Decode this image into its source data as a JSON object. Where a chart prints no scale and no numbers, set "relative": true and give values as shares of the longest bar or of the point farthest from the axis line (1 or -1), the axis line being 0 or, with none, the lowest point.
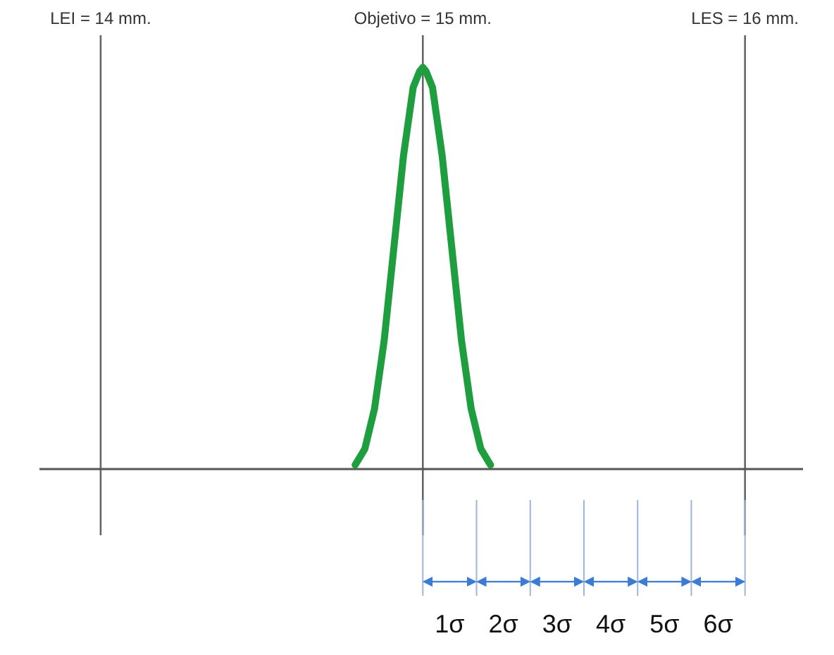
{
  "chart_data": {
    "type": "line",
    "relative": true,
    "xlim": [
      13.81,
      16.18
    ],
    "xticks": [
      {
        "value": 14,
        "label": "LEI = 14 mm."
      },
      {
        "value": 15,
        "label": "Objetivo = 15 mm."
      },
      {
        "value": 16,
        "label": "LES = 16 mm."
      }
    ],
    "grid": "x",
    "marker": "none",
    "series": [
      {
        "color": "#1e9e3e",
        "x": [
          14.79,
          14.82,
          14.85,
          14.88,
          14.91,
          14.94,
          14.97,
          14.99,
          15,
          15.01,
          15.03,
          15.06,
          15.09,
          15.12,
          15.15,
          15.18,
          15.21
        ],
        "values": [
          0.01,
          0.05,
          0.15,
          0.32,
          0.55,
          0.78,
          0.95,
          0.99,
          1,
          0.99,
          0.95,
          0.78,
          0.55,
          0.32,
          0.15,
          0.05,
          0.01
        ]
      }
    ],
    "annotations": [
      "1σ",
      "2σ",
      "3σ",
      "4σ",
      "5σ",
      "6σ"
    ]
  }
}
